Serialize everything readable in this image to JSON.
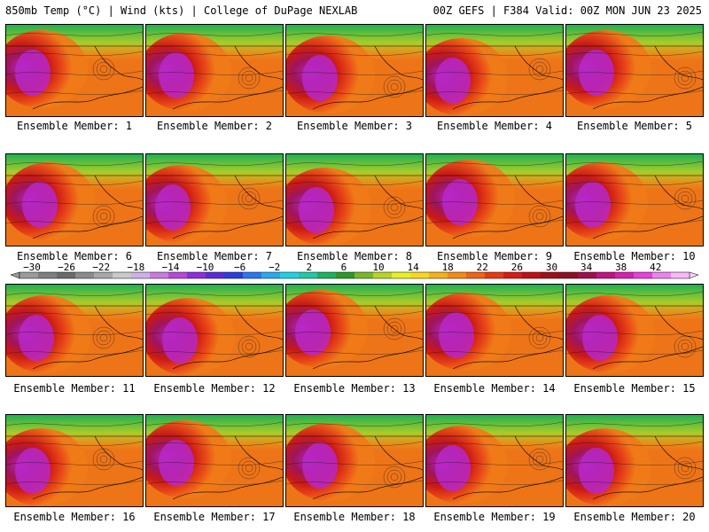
{
  "header": {
    "title_left": "850mb Temp (°C) | Wind (kts) | College of DuPage NEXLAB",
    "title_right": "00Z GEFS | F384 Valid: 00Z MON JUN 23 2025"
  },
  "members": [
    {
      "label": "Ensemble Member: 1"
    },
    {
      "label": "Ensemble Member: 2"
    },
    {
      "label": "Ensemble Member: 3"
    },
    {
      "label": "Ensemble Member: 4"
    },
    {
      "label": "Ensemble Member: 5"
    },
    {
      "label": "Ensemble Member: 6"
    },
    {
      "label": "Ensemble Member: 7"
    },
    {
      "label": "Ensemble Member: 8"
    },
    {
      "label": "Ensemble Member: 9"
    },
    {
      "label": "Ensemble Member: 10"
    },
    {
      "label": "Ensemble Member: 11"
    },
    {
      "label": "Ensemble Member: 12"
    },
    {
      "label": "Ensemble Member: 13"
    },
    {
      "label": "Ensemble Member: 14"
    },
    {
      "label": "Ensemble Member: 15"
    },
    {
      "label": "Ensemble Member: 16"
    },
    {
      "label": "Ensemble Member: 17"
    },
    {
      "label": "Ensemble Member: 18"
    },
    {
      "label": "Ensemble Member: 19"
    },
    {
      "label": "Ensemble Member: 20"
    }
  ],
  "colorbar": {
    "ticks": [
      "−30",
      "−26",
      "−22",
      "−18",
      "−14",
      "−10",
      "−6",
      "−2",
      "2",
      "6",
      "10",
      "14",
      "18",
      "22",
      "26",
      "30",
      "34",
      "38",
      "42"
    ],
    "colors": [
      "#9a9a9a",
      "#7f7f7f",
      "#6a6a6a",
      "#8c8c8c",
      "#a8a8a8",
      "#c9c9c9",
      "#cdb0e6",
      "#c77ce0",
      "#b848d8",
      "#8c2ee0",
      "#5a2ad8",
      "#2a3ee0",
      "#2a78f0",
      "#2aa8f0",
      "#22d0e6",
      "#22c8a8",
      "#20b060",
      "#2a9a2a",
      "#78b828",
      "#b8d424",
      "#e8f020",
      "#f8d81c",
      "#f8b018",
      "#f48a16",
      "#f06414",
      "#e83a12",
      "#d81c12",
      "#c01014",
      "#a01018",
      "#8c1020",
      "#a0104a",
      "#c01480",
      "#d820b0",
      "#e840d8",
      "#f080f0",
      "#f8b8f8"
    ]
  }
}
